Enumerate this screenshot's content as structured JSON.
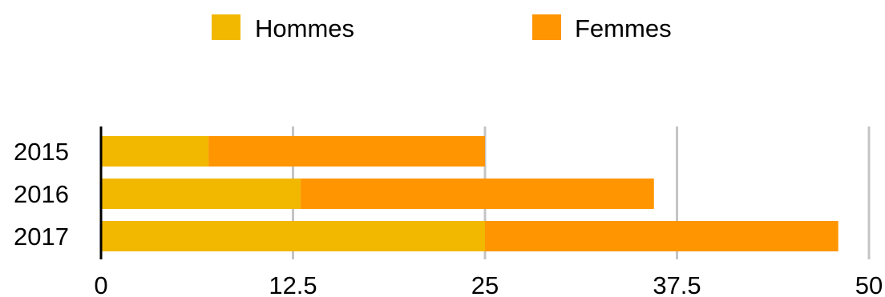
{
  "chart_data": {
    "type": "bar",
    "orientation": "horizontal",
    "stacked": true,
    "categories": [
      "2015",
      "2016",
      "2017"
    ],
    "series": [
      {
        "name": "Hommes",
        "values": [
          7,
          13,
          25
        ],
        "color": "#F2B800"
      },
      {
        "name": "Femmes",
        "values": [
          18,
          23,
          23
        ],
        "color": "#FF9500"
      }
    ],
    "xlim": [
      0,
      50
    ],
    "xticks": [
      "0",
      "12.5",
      "25",
      "37.5",
      "50"
    ],
    "grid": "vertical",
    "legend": "top-center"
  }
}
